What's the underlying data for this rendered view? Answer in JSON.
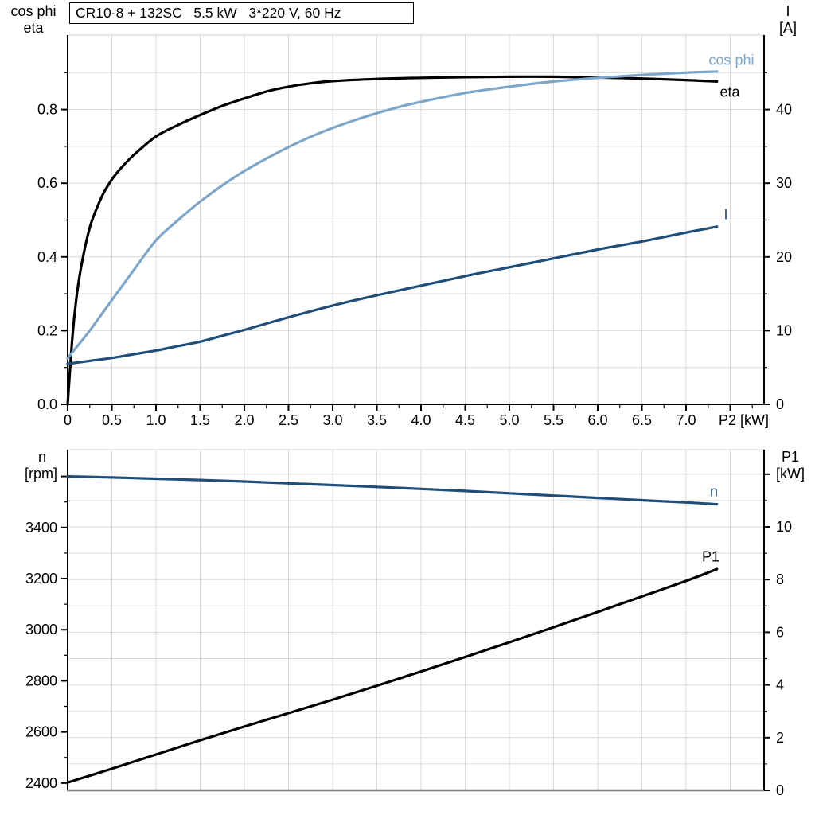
{
  "title": "CR10-8 + 132SC   5.5 kW   3*220 V, 60 Hz",
  "colors": {
    "steel_blue": "#7ea6c8",
    "dark_blue": "#1f4e79",
    "black": "#000000",
    "grid": "#d9d9d9",
    "axis_gray": "#7f7f7f"
  },
  "axis_titles": {
    "top_left_line1": "cos phi",
    "top_left_line2": "eta",
    "top_right_line1": "I",
    "top_right_line2": "[A]",
    "bottom_left_line1": "n",
    "bottom_left_line2": "[rpm]",
    "bottom_right_line1": "P1",
    "bottom_right_line2": "[kW]",
    "x_axis": "P2 [kW]"
  },
  "curve_labels": {
    "cos_phi": "cos phi",
    "eta": "eta",
    "current": "I",
    "speed": "n",
    "power": "P1"
  },
  "chart_data": [
    {
      "type": "line",
      "title": "CR10-8 + 132SC   5.5 kW   3*220 V, 60 Hz",
      "xlabel": "P2 [kW]",
      "ylabel_left": "cos phi / eta",
      "ylabel_right": "I [A]",
      "xlim": [
        0,
        7.9
      ],
      "ylim_left": [
        0,
        1.0
      ],
      "ylim_right": [
        0,
        50
      ],
      "grid": true,
      "x_major_ticks": [
        0,
        0.5,
        1,
        1.5,
        2,
        2.5,
        3,
        3.5,
        4,
        4.5,
        5,
        5.5,
        6,
        6.5,
        7,
        7.5
      ],
      "x_tick_labels": [
        "0",
        "0.5",
        "1.0",
        "1.5",
        "2.0",
        "2.5",
        "3.0",
        "3.5",
        "4.0",
        "4.5",
        "5.0",
        "5.5",
        "6.0",
        "6.5",
        "7.0"
      ],
      "x_minor_ticks": [
        0.25,
        0.75,
        1.25,
        1.75,
        2.25,
        2.75,
        3.25,
        3.75,
        4.25,
        4.75,
        5.25,
        5.75,
        6.25,
        6.75,
        7.25,
        7.75
      ],
      "left_major_ticks": [
        0,
        0.2,
        0.4,
        0.6,
        0.8
      ],
      "left_tick_labels": [
        "0.0",
        "0.2",
        "0.4",
        "0.6",
        "0.8"
      ],
      "left_minor_ticks": [
        0.1,
        0.3,
        0.5,
        0.7,
        0.9
      ],
      "right_major_ticks": [
        0,
        10,
        20,
        30,
        40
      ],
      "right_tick_labels": [
        "0",
        "10",
        "20",
        "30",
        "40"
      ],
      "right_minor_ticks": [
        5,
        15,
        25,
        35,
        45
      ],
      "h_gridlines_left_units": [
        0.1,
        0.2,
        0.3,
        0.4,
        0.5,
        0.6,
        0.7,
        0.8,
        0.9
      ],
      "series": [
        {
          "name": "eta",
          "axis": "left",
          "color_key": "black",
          "x": [
            0,
            0.05,
            0.1,
            0.15,
            0.2,
            0.25,
            0.3,
            0.4,
            0.5,
            0.6,
            0.75,
            1,
            1.25,
            1.5,
            1.75,
            2,
            2.25,
            2.5,
            2.75,
            3,
            3.5,
            4,
            4.5,
            5,
            5.5,
            6,
            6.5,
            7,
            7.35
          ],
          "values": [
            0,
            0.17,
            0.29,
            0.37,
            0.43,
            0.48,
            0.515,
            0.57,
            0.61,
            0.64,
            0.677,
            0.727,
            0.758,
            0.785,
            0.81,
            0.83,
            0.849,
            0.862,
            0.871,
            0.877,
            0.883,
            0.886,
            0.888,
            0.889,
            0.889,
            0.887,
            0.884,
            0.88,
            0.876
          ]
        },
        {
          "name": "cos phi",
          "axis": "left",
          "color_key": "steel_blue",
          "x": [
            0,
            0.1,
            0.25,
            0.5,
            0.75,
            1,
            1.25,
            1.5,
            1.75,
            2,
            2.25,
            2.5,
            2.75,
            3,
            3.25,
            3.5,
            3.75,
            4,
            4.5,
            5,
            5.5,
            6,
            6.5,
            7,
            7.35
          ],
          "values": [
            0.125,
            0.155,
            0.2,
            0.283,
            0.365,
            0.445,
            0.5,
            0.55,
            0.594,
            0.633,
            0.667,
            0.698,
            0.726,
            0.75,
            0.771,
            0.79,
            0.807,
            0.821,
            0.845,
            0.862,
            0.876,
            0.886,
            0.894,
            0.9,
            0.903
          ]
        },
        {
          "name": "I",
          "axis": "right",
          "color_key": "dark_blue",
          "x": [
            0,
            0.25,
            0.5,
            0.75,
            1,
            1.25,
            1.5,
            1.75,
            2,
            2.5,
            3,
            3.5,
            4,
            4.5,
            5,
            5.5,
            6,
            6.5,
            7,
            7.35
          ],
          "values": [
            5.5,
            5.9,
            6.3,
            6.8,
            7.3,
            7.9,
            8.5,
            9.3,
            10.1,
            11.8,
            13.4,
            14.8,
            16.1,
            17.4,
            18.6,
            19.8,
            21,
            22.1,
            23.3,
            24.1
          ]
        }
      ]
    },
    {
      "type": "line",
      "xlabel": "P2 [kW]",
      "ylabel_left": "n [rpm]",
      "ylabel_right": "P1 [kW]",
      "xlim": [
        0,
        7.9
      ],
      "ylim_left": [
        2372,
        3705
      ],
      "ylim_right": [
        0,
        12.9
      ],
      "grid": true,
      "left_major_ticks": [
        2400,
        2600,
        2800,
        3000,
        3200,
        3400,
        3600
      ],
      "left_tick_labels": [
        "2400",
        "2600",
        "2800",
        "3000",
        "3200",
        "3400"
      ],
      "left_minor_ticks": [
        2500,
        2700,
        2900,
        3100,
        3300,
        3500
      ],
      "right_major_ticks": [
        0,
        2,
        4,
        6,
        8,
        10,
        12
      ],
      "right_tick_labels": [
        "0",
        "2",
        "4",
        "6",
        "8",
        "10"
      ],
      "right_minor_ticks": [
        1,
        3,
        5,
        7,
        9,
        11
      ],
      "h_gridlines_right_units": [
        1,
        2,
        3,
        4,
        5,
        6,
        7,
        8,
        9,
        10,
        11,
        12
      ],
      "series": [
        {
          "name": "n",
          "axis": "left",
          "color_key": "dark_blue",
          "x": [
            0,
            0.5,
            1,
            1.5,
            2,
            2.5,
            3,
            3.5,
            4,
            4.5,
            5,
            5.5,
            6,
            6.5,
            7,
            7.35
          ],
          "values": [
            3600,
            3596,
            3591,
            3586,
            3580,
            3573,
            3566,
            3559,
            3551,
            3543,
            3534,
            3525,
            3516,
            3507,
            3498,
            3491
          ]
        },
        {
          "name": "P1",
          "axis": "right",
          "color_key": "black",
          "x": [
            0,
            0.5,
            1,
            1.5,
            2,
            2.5,
            3,
            3.5,
            4,
            4.5,
            5,
            5.5,
            6,
            6.5,
            7,
            7.35
          ],
          "values": [
            0.3,
            0.82,
            1.36,
            1.9,
            2.42,
            2.93,
            3.44,
            3.97,
            4.51,
            5.06,
            5.62,
            6.19,
            6.77,
            7.36,
            7.95,
            8.4
          ]
        }
      ]
    }
  ]
}
